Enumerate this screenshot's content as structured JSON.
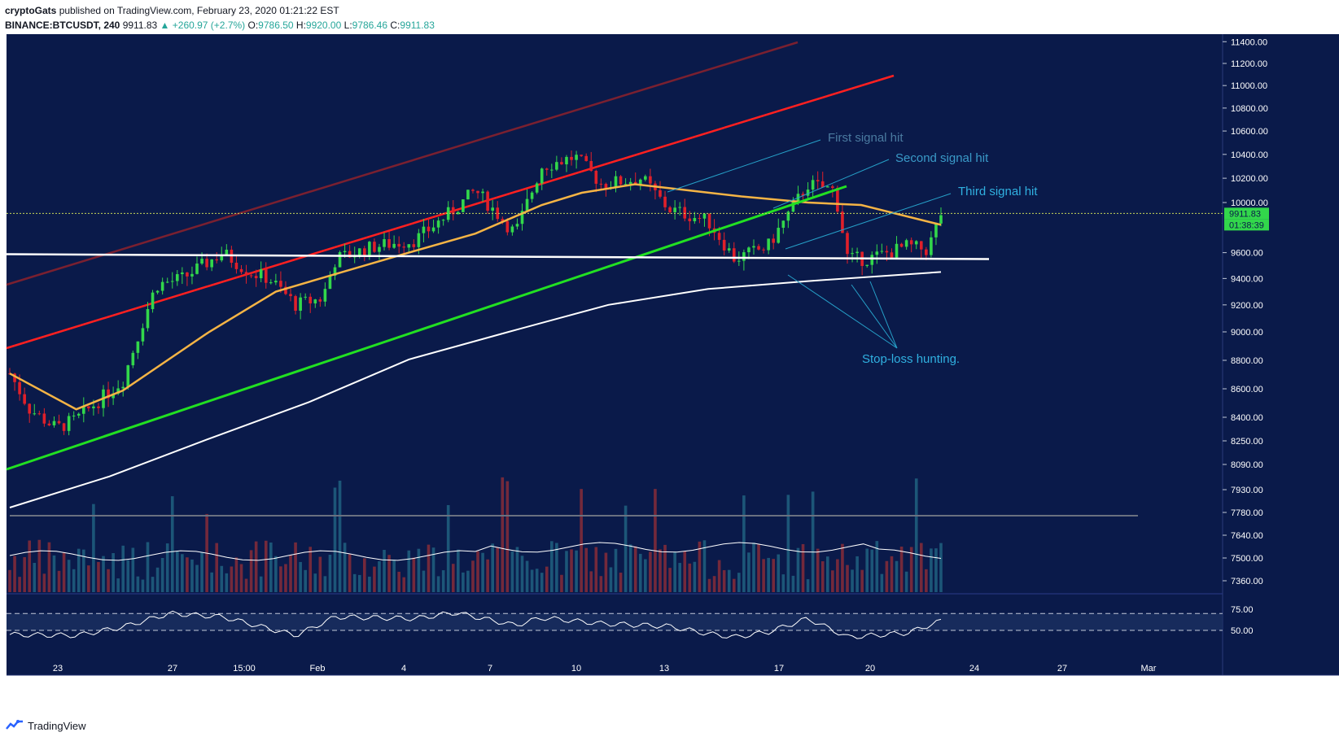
{
  "header": {
    "author": "cryptoGats",
    "published": "published on TradingView.com, February 23, 2020 01:21:22 EST",
    "symbol": "BINANCE:BTCUSDT, 240",
    "last": "9911.83",
    "change": "▲ +260.97 (+2.7%)",
    "o_label": "O:",
    "o": "9786.50",
    "h_label": "H:",
    "h": "9920.00",
    "l_label": "L:",
    "l": "9786.46",
    "c_label": "C:",
    "c": "9911.83"
  },
  "footer": {
    "brand": "TradingView"
  },
  "colors": {
    "background": "#0a1a4a",
    "up": "#32d74b",
    "down": "#e0202a",
    "ema_short": "#f5b445",
    "ema_long": "#ffffff",
    "support": "#ffffff",
    "channel": "#ff2020",
    "trend": "#22e022",
    "annotation": "#26a0c8"
  },
  "chart_data": {
    "type": "candlestick",
    "price_axis": {
      "ticks": [
        "11400.00",
        "11200.00",
        "11000.00",
        "10800.00",
        "10600.00",
        "10400.00",
        "10200.00",
        "10000.00",
        "9600.00",
        "9400.00",
        "9200.00",
        "9000.00",
        "8800.00",
        "8600.00",
        "8400.00",
        "8250.00",
        "8090.00",
        "7930.00",
        "7780.00",
        "7640.00",
        "7500.00",
        "7360.00"
      ],
      "scale": "log",
      "last_price": "9911.83",
      "countdown": "01:38:39"
    },
    "time_axis": {
      "labels": [
        "23",
        "27",
        "15:00",
        "Feb",
        "4",
        "7",
        "10",
        "13",
        "17",
        "20",
        "24",
        "27",
        "Mar"
      ]
    },
    "rsi_axis": {
      "ticks": [
        "75.00",
        "50.00"
      ]
    },
    "price_path": [
      [
        0,
        8700
      ],
      [
        0.3,
        8450
      ],
      [
        0.7,
        8320
      ],
      [
        1.0,
        8380
      ],
      [
        1.7,
        8650
      ],
      [
        2.2,
        9350
      ],
      [
        2.6,
        9400
      ],
      [
        3.2,
        9600
      ],
      [
        3.6,
        9450
      ],
      [
        3.9,
        9400
      ],
      [
        4.3,
        9200
      ],
      [
        4.7,
        9250
      ],
      [
        4.9,
        9550
      ],
      [
        5.5,
        9650
      ],
      [
        6.1,
        9700
      ],
      [
        6.7,
        9950
      ],
      [
        7.0,
        10100
      ],
      [
        7.6,
        9750
      ],
      [
        8.0,
        10300
      ],
      [
        8.5,
        10380
      ],
      [
        8.9,
        10150
      ],
      [
        9.5,
        10200
      ],
      [
        9.9,
        9950
      ],
      [
        10.5,
        9850
      ],
      [
        10.9,
        9550
      ],
      [
        11.4,
        9650
      ],
      [
        12.0,
        10150
      ],
      [
        12.4,
        10100
      ],
      [
        12.6,
        9550
      ],
      [
        12.9,
        9550
      ],
      [
        13.5,
        9650
      ],
      [
        13.8,
        9620
      ],
      [
        14.0,
        9911
      ]
    ],
    "ema_short": [
      [
        0,
        8700
      ],
      [
        1.0,
        8450
      ],
      [
        1.7,
        8580
      ],
      [
        3.0,
        9000
      ],
      [
        4.0,
        9300
      ],
      [
        5.0,
        9450
      ],
      [
        6.0,
        9600
      ],
      [
        7.0,
        9750
      ],
      [
        8.0,
        9980
      ],
      [
        8.6,
        10080
      ],
      [
        9.4,
        10150
      ],
      [
        10.2,
        10100
      ],
      [
        11.0,
        10050
      ],
      [
        12.0,
        10000
      ],
      [
        12.8,
        9980
      ],
      [
        14.0,
        9820
      ]
    ],
    "ema_long": [
      [
        0,
        7800
      ],
      [
        1.5,
        8000
      ],
      [
        3.0,
        8250
      ],
      [
        4.5,
        8500
      ],
      [
        6.0,
        8800
      ],
      [
        7.5,
        9000
      ],
      [
        9.0,
        9200
      ],
      [
        10.5,
        9320
      ],
      [
        12.0,
        9380
      ],
      [
        14.0,
        9450
      ]
    ],
    "support_level": 9550,
    "annotations": [
      "First signal hit",
      "Second signal hit",
      "Third signal hit",
      "Stop-loss hunting."
    ],
    "rsi_path": [
      [
        0,
        45
      ],
      [
        1.0,
        44
      ],
      [
        1.7,
        54
      ],
      [
        2.4,
        70
      ],
      [
        3.2,
        66
      ],
      [
        4.3,
        44
      ],
      [
        4.9,
        66
      ],
      [
        6.1,
        64
      ],
      [
        6.7,
        71
      ],
      [
        7.6,
        56
      ],
      [
        8.0,
        65
      ],
      [
        8.9,
        58
      ],
      [
        9.9,
        55
      ],
      [
        10.5,
        46
      ],
      [
        10.9,
        42
      ],
      [
        11.4,
        48
      ],
      [
        12.0,
        64
      ],
      [
        12.6,
        42
      ],
      [
        13.5,
        47
      ],
      [
        14.0,
        61
      ]
    ]
  }
}
